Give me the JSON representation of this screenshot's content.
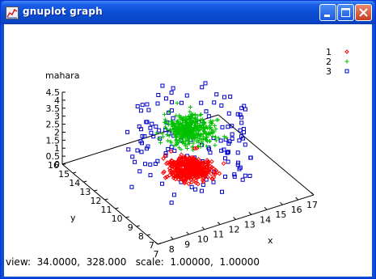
{
  "window": {
    "title": "gnuplot graph"
  },
  "status": {
    "text": "view:  34.0000,  328.000   scale:  1.00000,  1.00000"
  },
  "legend": [
    {
      "label": "1",
      "color": "#ff0000",
      "marker": "diamond"
    },
    {
      "label": "2",
      "color": "#00c000",
      "marker": "plus"
    },
    {
      "label": "3",
      "color": "#0000cc",
      "marker": "square"
    }
  ],
  "chart_data": {
    "type": "scatter",
    "view": {
      "rot_x": 34.0,
      "rot_z": 328.0,
      "scale": 1.0,
      "scale_z": 1.0
    },
    "xlabel": "x",
    "ylabel": "y",
    "zlabel": "mahara",
    "x_ticks": [
      "7",
      "8",
      "9",
      "10",
      "11",
      "12",
      "13",
      "14",
      "15",
      "16",
      "17"
    ],
    "y_ticks": [
      "7",
      "8",
      "9",
      "10",
      "11",
      "12",
      "13",
      "14",
      "15",
      "16"
    ],
    "z_ticks": [
      "0",
      "0.5",
      "1",
      "1.5",
      "2",
      "2.5",
      "3",
      "3.5",
      "4",
      "4.5"
    ],
    "xlim": [
      7,
      17
    ],
    "ylim": [
      7,
      16
    ],
    "zlim": [
      0,
      4.5
    ],
    "series": [
      {
        "name": "1",
        "color": "#ff0000",
        "z_range": [
          0,
          1.2
        ]
      },
      {
        "name": "2",
        "color": "#00c000",
        "z_range": [
          1.5,
          4.5
        ]
      },
      {
        "name": "3",
        "color": "#0000cc",
        "z_range": [
          0,
          4.5
        ]
      }
    ]
  }
}
